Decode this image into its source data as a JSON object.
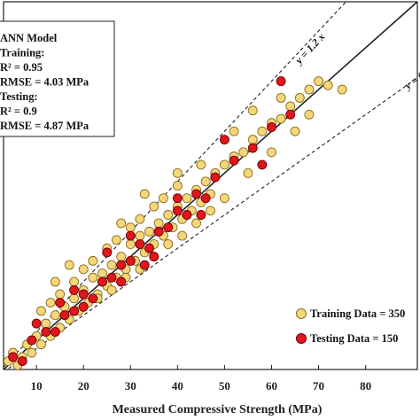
{
  "chart_data": {
    "type": "scatter",
    "title": "",
    "xlabel": "Measured Compressive Strength (MPa)",
    "ylabel": "",
    "xlim": [
      3,
      91
    ],
    "ylim": [
      3,
      91
    ],
    "x_ticks": [
      10,
      20,
      30,
      40,
      50,
      60,
      70,
      80
    ],
    "info_box": [
      "ANN Model",
      "Training:",
      "R² = 0.95",
      "RMSE = 4.03 MPa",
      "Testing:",
      "R² = 0.9",
      "RMSE = 4.87 MPa"
    ],
    "reference_lines": [
      {
        "label": "y = 1.2 x",
        "slope": 1.2,
        "style": "dashed"
      },
      {
        "label": "y = 0.8 x",
        "slope": 0.8,
        "style": "dashed"
      },
      {
        "label": "",
        "slope": 1.0,
        "style": "solid"
      }
    ],
    "legend_position": "bottom-right",
    "series": [
      {
        "name": "Training Data = 350",
        "color": "#f5d67a",
        "edge": "#8a6d1a",
        "points": [
          [
            4,
            5
          ],
          [
            5,
            7
          ],
          [
            6,
            4
          ],
          [
            7,
            6
          ],
          [
            8,
            9
          ],
          [
            9,
            7
          ],
          [
            10,
            11
          ],
          [
            11,
            9
          ],
          [
            12,
            14
          ],
          [
            13,
            11
          ],
          [
            14,
            16
          ],
          [
            15,
            13
          ],
          [
            16,
            18
          ],
          [
            17,
            15
          ],
          [
            18,
            20
          ],
          [
            19,
            17
          ],
          [
            20,
            22
          ],
          [
            21,
            19
          ],
          [
            22,
            25
          ],
          [
            23,
            21
          ],
          [
            24,
            26
          ],
          [
            25,
            23
          ],
          [
            26,
            28
          ],
          [
            27,
            25
          ],
          [
            28,
            30
          ],
          [
            29,
            27
          ],
          [
            30,
            33
          ],
          [
            31,
            29
          ],
          [
            32,
            35
          ],
          [
            33,
            31
          ],
          [
            34,
            36
          ],
          [
            35,
            33
          ],
          [
            36,
            38
          ],
          [
            37,
            35
          ],
          [
            38,
            40
          ],
          [
            39,
            37
          ],
          [
            40,
            42
          ],
          [
            41,
            39
          ],
          [
            42,
            44
          ],
          [
            43,
            41
          ],
          [
            44,
            46
          ],
          [
            45,
            43
          ],
          [
            46,
            48
          ],
          [
            47,
            45
          ],
          [
            48,
            50
          ],
          [
            50,
            52
          ],
          [
            52,
            54
          ],
          [
            54,
            55
          ],
          [
            56,
            58
          ],
          [
            58,
            60
          ],
          [
            60,
            62
          ],
          [
            62,
            63
          ],
          [
            64,
            66
          ],
          [
            66,
            68
          ],
          [
            68,
            70
          ],
          [
            70,
            72
          ],
          [
            72,
            71
          ],
          [
            75,
            70
          ],
          [
            11,
            17
          ],
          [
            13,
            19
          ],
          [
            15,
            21
          ],
          [
            18,
            24
          ],
          [
            20,
            27
          ],
          [
            22,
            29
          ],
          [
            25,
            32
          ],
          [
            27,
            34
          ],
          [
            30,
            37
          ],
          [
            32,
            39
          ],
          [
            35,
            42
          ],
          [
            37,
            44
          ],
          [
            40,
            47
          ],
          [
            23,
            20
          ],
          [
            26,
            22
          ],
          [
            29,
            25
          ],
          [
            32,
            27
          ],
          [
            35,
            30
          ],
          [
            38,
            33
          ],
          [
            41,
            35
          ],
          [
            44,
            38
          ],
          [
            47,
            41
          ],
          [
            50,
            44
          ],
          [
            55,
            50
          ],
          [
            60,
            55
          ],
          [
            65,
            60
          ],
          [
            68,
            64
          ],
          [
            28,
            38
          ],
          [
            33,
            45
          ],
          [
            40,
            50
          ],
          [
            45,
            52
          ],
          [
            52,
            60
          ],
          [
            56,
            65
          ],
          [
            62,
            68
          ],
          [
            17,
            28
          ],
          [
            14,
            24
          ]
        ]
      },
      {
        "name": "Testing  Data = 150",
        "color": "#e0161b",
        "edge": "#6a0000",
        "points": [
          [
            5,
            6
          ],
          [
            7,
            5
          ],
          [
            9,
            10
          ],
          [
            12,
            12
          ],
          [
            14,
            12
          ],
          [
            16,
            16
          ],
          [
            18,
            17
          ],
          [
            20,
            21
          ],
          [
            22,
            20
          ],
          [
            24,
            24
          ],
          [
            26,
            25
          ],
          [
            28,
            28
          ],
          [
            30,
            29
          ],
          [
            32,
            33
          ],
          [
            34,
            32
          ],
          [
            36,
            36
          ],
          [
            38,
            37
          ],
          [
            40,
            41
          ],
          [
            42,
            40
          ],
          [
            44,
            45
          ],
          [
            46,
            44
          ],
          [
            48,
            49
          ],
          [
            52,
            53
          ],
          [
            56,
            56
          ],
          [
            60,
            61
          ],
          [
            64,
            64
          ],
          [
            10,
            14
          ],
          [
            18,
            22
          ],
          [
            30,
            35
          ],
          [
            40,
            44
          ],
          [
            28,
            24
          ],
          [
            35,
            30
          ],
          [
            45,
            40
          ],
          [
            58,
            52
          ],
          [
            62,
            72
          ],
          [
            25,
            31
          ],
          [
            33,
            28
          ],
          [
            50,
            58
          ],
          [
            20,
            18
          ],
          [
            15,
            19
          ]
        ]
      }
    ]
  }
}
